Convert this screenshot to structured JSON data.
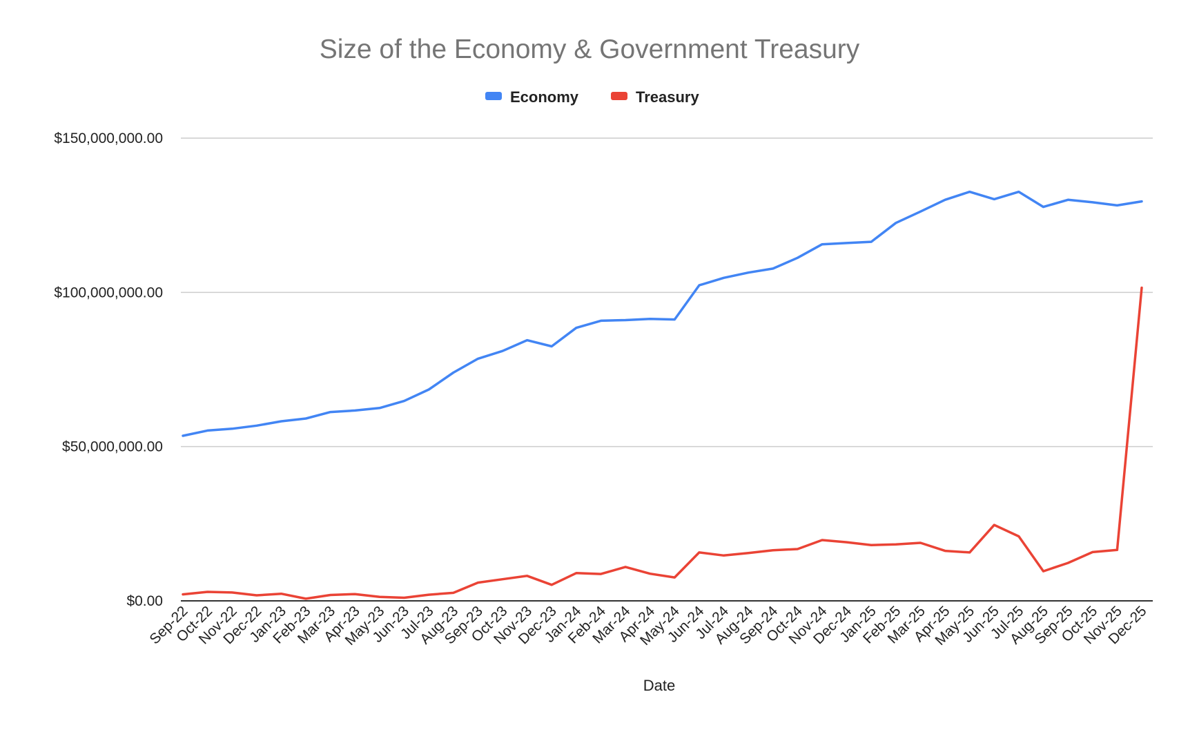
{
  "chart_data": {
    "type": "line",
    "title": "Size of the Economy & Government Treasury",
    "xlabel": "Date",
    "ylabel": "",
    "ylim": [
      0,
      150000000
    ],
    "yticks": [
      0,
      50000000,
      100000000,
      150000000
    ],
    "ytick_labels": [
      "$0.00",
      "$50,000,000.00",
      "$100,000,000.00",
      "$150,000,000.00"
    ],
    "grid": true,
    "legend_position": "top-center",
    "categories": [
      "Sep-22",
      "Oct-22",
      "Nov-22",
      "Dec-22",
      "Jan-23",
      "Feb-23",
      "Mar-23",
      "Apr-23",
      "May-23",
      "Jun-23",
      "Jul-23",
      "Aug-23",
      "Sep-23",
      "Oct-23",
      "Nov-23",
      "Dec-23",
      "Jan-24",
      "Feb-24",
      "Mar-24",
      "Apr-24",
      "May-24",
      "Jun-24",
      "Jul-24",
      "Aug-24",
      "Sep-24",
      "Oct-24",
      "Nov-24",
      "Dec-24",
      "Jan-25",
      "Feb-25",
      "Mar-25",
      "Apr-25",
      "May-25",
      "Jun-25",
      "Jul-25",
      "Aug-25",
      "Sep-25",
      "Oct-25",
      "Nov-25",
      "Dec-25"
    ],
    "series": [
      {
        "name": "Economy",
        "color": "#4285f4",
        "values": [
          53500000,
          55200000,
          55800000,
          56800000,
          58200000,
          59100000,
          61200000,
          61700000,
          62500000,
          64800000,
          68500000,
          74000000,
          78500000,
          81000000,
          84500000,
          82500000,
          88500000,
          90800000,
          91000000,
          91400000,
          91200000,
          102300000,
          104700000,
          106400000,
          107700000,
          111200000,
          115600000,
          116000000,
          116400000,
          122500000,
          126200000,
          130000000,
          132600000,
          130200000,
          132600000,
          127700000,
          130000000,
          129200000,
          128200000,
          129500000
        ]
      },
      {
        "name": "Treasury",
        "color": "#ea4335",
        "values": [
          2100000,
          2900000,
          2700000,
          1800000,
          2300000,
          700000,
          1900000,
          2200000,
          1300000,
          1000000,
          2000000,
          2600000,
          5900000,
          7000000,
          8100000,
          5200000,
          9000000,
          8700000,
          11000000,
          8800000,
          7600000,
          15700000,
          14700000,
          15500000,
          16400000,
          16800000,
          19700000,
          19000000,
          18100000,
          18300000,
          18800000,
          16200000,
          15700000,
          24600000,
          20900000,
          9600000,
          12300000,
          15800000,
          16500000,
          101500000
        ]
      }
    ]
  }
}
